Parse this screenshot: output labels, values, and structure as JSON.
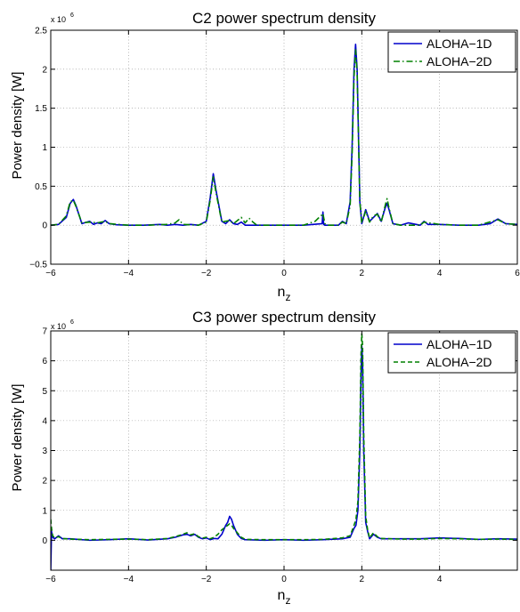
{
  "chart_data": [
    {
      "type": "line",
      "title": "C2 power spectrum density",
      "xlabel": "n",
      "xlabel_sub": "z",
      "ylabel": "Power density [W]",
      "exponent_label": "x 10",
      "exponent_power": "6",
      "xlim": [
        -6,
        6
      ],
      "ylim": [
        -0.5,
        2.5
      ],
      "xticks": [
        -6,
        -4,
        -2,
        0,
        2,
        4,
        6
      ],
      "xtick_labels": [
        "−6",
        "−4",
        "−2",
        "0",
        "2",
        "4",
        "6"
      ],
      "yticks": [
        -0.5,
        0,
        0.5,
        1,
        1.5,
        2,
        2.5
      ],
      "ytick_labels": [
        "−0.5",
        "0",
        "0.5",
        "1",
        "1.5",
        "2",
        "2.5"
      ],
      "grid": true,
      "legend_position": "top-right",
      "series": [
        {
          "name": "ALOHA−1D",
          "color": "#0000cc",
          "style": "solid",
          "x": [
            -6,
            -5.8,
            -5.6,
            -5.5,
            -5.42,
            -5.35,
            -5.2,
            -5.0,
            -4.9,
            -4.8,
            -4.7,
            -4.6,
            -4.5,
            -4.3,
            -4.0,
            -3.6,
            -3.2,
            -3.0,
            -2.8,
            -2.6,
            -2.4,
            -2.2,
            -2.0,
            -1.9,
            -1.82,
            -1.75,
            -1.6,
            -1.5,
            -1.4,
            -1.3,
            -1.2,
            -1.1,
            -1.0,
            -0.9,
            -0.5,
            0,
            0.5,
            0.98,
            1.0,
            1.02,
            1.05,
            1.1,
            1.2,
            1.4,
            1.5,
            1.6,
            1.7,
            1.75,
            1.8,
            1.84,
            1.88,
            1.95,
            2.0,
            2.1,
            2.2,
            2.3,
            2.4,
            2.5,
            2.6,
            2.65,
            2.7,
            2.8,
            3.0,
            3.2,
            3.5,
            3.6,
            3.7,
            4.0,
            4.5,
            5.0,
            5.3,
            5.5,
            5.7,
            6.0
          ],
          "y": [
            0,
            0.01,
            0.1,
            0.28,
            0.33,
            0.25,
            0.02,
            0.05,
            0.01,
            0.03,
            0.02,
            0.06,
            0.02,
            0.005,
            0,
            0,
            0.01,
            0,
            0.01,
            0,
            0.01,
            0,
            0.05,
            0.35,
            0.66,
            0.45,
            0.05,
            0.02,
            0.07,
            0.02,
            0.01,
            0.04,
            0,
            0,
            0,
            0,
            0,
            0.02,
            0.17,
            0.01,
            0,
            0,
            0,
            0,
            0.05,
            0.02,
            0.3,
            1.0,
            2.0,
            2.32,
            2.0,
            0.3,
            0.02,
            0.2,
            0.05,
            0.1,
            0.15,
            0.05,
            0.22,
            0.28,
            0.2,
            0.02,
            0,
            0.03,
            0,
            0.05,
            0.01,
            0.01,
            0,
            0,
            0.02,
            0.08,
            0.02,
            0.01
          ]
        },
        {
          "name": "ALOHA−2D",
          "color": "#008000",
          "style": "dashdot",
          "x": [
            -6,
            -5.8,
            -5.6,
            -5.5,
            -5.42,
            -5.35,
            -5.2,
            -5.0,
            -4.8,
            -4.6,
            -4.5,
            -4.0,
            -3.5,
            -3.0,
            -2.8,
            -2.7,
            -2.6,
            -2.2,
            -2.0,
            -1.9,
            -1.82,
            -1.75,
            -1.6,
            -1.4,
            -1.3,
            -1.1,
            -1.0,
            -0.9,
            -0.8,
            -0.7,
            -0.5,
            0,
            0.5,
            0.8,
            0.9,
            0.95,
            1.0,
            1.05,
            1.1,
            1.4,
            1.5,
            1.6,
            1.7,
            1.75,
            1.8,
            1.84,
            1.88,
            1.95,
            2.0,
            2.1,
            2.2,
            2.3,
            2.4,
            2.5,
            2.6,
            2.65,
            2.7,
            2.8,
            3.0,
            3.5,
            3.6,
            4.0,
            4.5,
            5.0,
            5.5,
            5.7,
            6.0
          ],
          "y": [
            0,
            0.01,
            0.12,
            0.3,
            0.32,
            0.24,
            0.03,
            0.04,
            0.03,
            0.05,
            0.02,
            0,
            0,
            0.01,
            0.03,
            0.07,
            0.01,
            0,
            0.04,
            0.32,
            0.62,
            0.42,
            0.04,
            0.06,
            0.02,
            0.1,
            0.03,
            0.09,
            0.04,
            0,
            0,
            0,
            0,
            0.05,
            0.1,
            0.12,
            0.15,
            0.02,
            0,
            0,
            0.04,
            0.02,
            0.25,
            0.9,
            1.9,
            2.25,
            1.95,
            0.3,
            0.03,
            0.18,
            0.04,
            0.12,
            0.14,
            0.04,
            0.25,
            0.34,
            0.22,
            0.02,
            0,
            0,
            0.04,
            0.01,
            0,
            0,
            0.07,
            0.02,
            0.01
          ]
        }
      ]
    },
    {
      "type": "line",
      "title": "C3 power spectrum density",
      "xlabel": "n",
      "xlabel_sub": "z",
      "ylabel": "Power density [W]",
      "exponent_label": "x 10",
      "exponent_power": "6",
      "xlim": [
        -6,
        6
      ],
      "ylim": [
        -1,
        7
      ],
      "xticks": [
        -6,
        -4,
        -2,
        0,
        2,
        4
      ],
      "xtick_labels": [
        "−6",
        "−4",
        "−2",
        "0",
        "2",
        "4"
      ],
      "yticks": [
        0,
        1,
        2,
        3,
        4,
        5,
        6,
        7
      ],
      "ytick_labels": [
        "0",
        "1",
        "2",
        "3",
        "4",
        "5",
        "6",
        "7"
      ],
      "grid": true,
      "legend_position": "top-right",
      "series": [
        {
          "name": "ALOHA−1D",
          "color": "#0000cc",
          "style": "solid",
          "x": [
            -6.0,
            -5.98,
            -5.95,
            -5.9,
            -5.8,
            -5.7,
            -5.5,
            -5.0,
            -4.5,
            -4.0,
            -3.5,
            -3.0,
            -2.8,
            -2.6,
            -2.5,
            -2.4,
            -2.3,
            -2.2,
            -2.1,
            -2.0,
            -1.9,
            -1.8,
            -1.7,
            -1.6,
            -1.5,
            -1.45,
            -1.4,
            -1.35,
            -1.3,
            -1.2,
            -1.1,
            -1.0,
            -0.5,
            0,
            0.5,
            1.0,
            1.5,
            1.7,
            1.8,
            1.85,
            1.9,
            1.95,
            1.98,
            2.0,
            2.02,
            2.05,
            2.1,
            2.15,
            2.2,
            2.3,
            2.4,
            2.5,
            3.0,
            3.5,
            4.0,
            4.5,
            5.0,
            5.5,
            6.0
          ],
          "y": [
            -1,
            0.3,
            0.1,
            0.05,
            0.15,
            0.05,
            0.05,
            0,
            0.02,
            0.05,
            0.01,
            0.05,
            0.1,
            0.18,
            0.2,
            0.15,
            0.2,
            0.1,
            0.05,
            0.08,
            0.02,
            0.06,
            0.05,
            0.2,
            0.5,
            0.6,
            0.8,
            0.7,
            0.5,
            0.2,
            0.06,
            0.02,
            0,
            0.02,
            0,
            0.02,
            0.05,
            0.1,
            0.4,
            0.5,
            1.0,
            3.0,
            5.5,
            6.5,
            6.0,
            3.0,
            0.6,
            0.3,
            0.05,
            0.2,
            0.1,
            0.05,
            0.05,
            0.05,
            0.08,
            0.06,
            0.03,
            0.05,
            0.04
          ]
        },
        {
          "name": "ALOHA−2D",
          "color": "#008000",
          "style": "dashed",
          "x": [
            -6.0,
            -5.98,
            -5.95,
            -5.9,
            -5.8,
            -5.7,
            -5.5,
            -5.0,
            -4.5,
            -4.0,
            -3.5,
            -3.0,
            -2.8,
            -2.6,
            -2.5,
            -2.4,
            -2.3,
            -2.2,
            -2.1,
            -2.0,
            -1.9,
            -1.8,
            -1.7,
            -1.6,
            -1.5,
            -1.45,
            -1.4,
            -1.35,
            -1.3,
            -1.2,
            -1.1,
            -1.0,
            -0.5,
            0,
            0.5,
            1.0,
            1.5,
            1.7,
            1.8,
            1.85,
            1.9,
            1.95,
            1.98,
            2.0,
            2.02,
            2.05,
            2.1,
            2.15,
            2.2,
            2.3,
            2.4,
            2.5,
            3.0,
            3.5,
            4.0,
            4.5,
            5.0,
            5.5,
            6.0
          ],
          "y": [
            0.7,
            0.4,
            0.15,
            0.08,
            0.12,
            0.06,
            0.04,
            0.02,
            0.03,
            0.04,
            0.02,
            0.06,
            0.12,
            0.2,
            0.25,
            0.18,
            0.22,
            0.12,
            0.07,
            0.1,
            0.05,
            0.1,
            0.2,
            0.35,
            0.45,
            0.5,
            0.55,
            0.5,
            0.4,
            0.25,
            0.1,
            0.03,
            0.02,
            0.02,
            0.02,
            0.03,
            0.08,
            0.15,
            0.5,
            0.7,
            1.3,
            3.5,
            6.2,
            6.9,
            6.5,
            3.5,
            0.8,
            0.35,
            0.08,
            0.25,
            0.12,
            0.06,
            0.04,
            0.04,
            0.06,
            0.05,
            0.03,
            0.04,
            0.03
          ]
        }
      ]
    }
  ]
}
